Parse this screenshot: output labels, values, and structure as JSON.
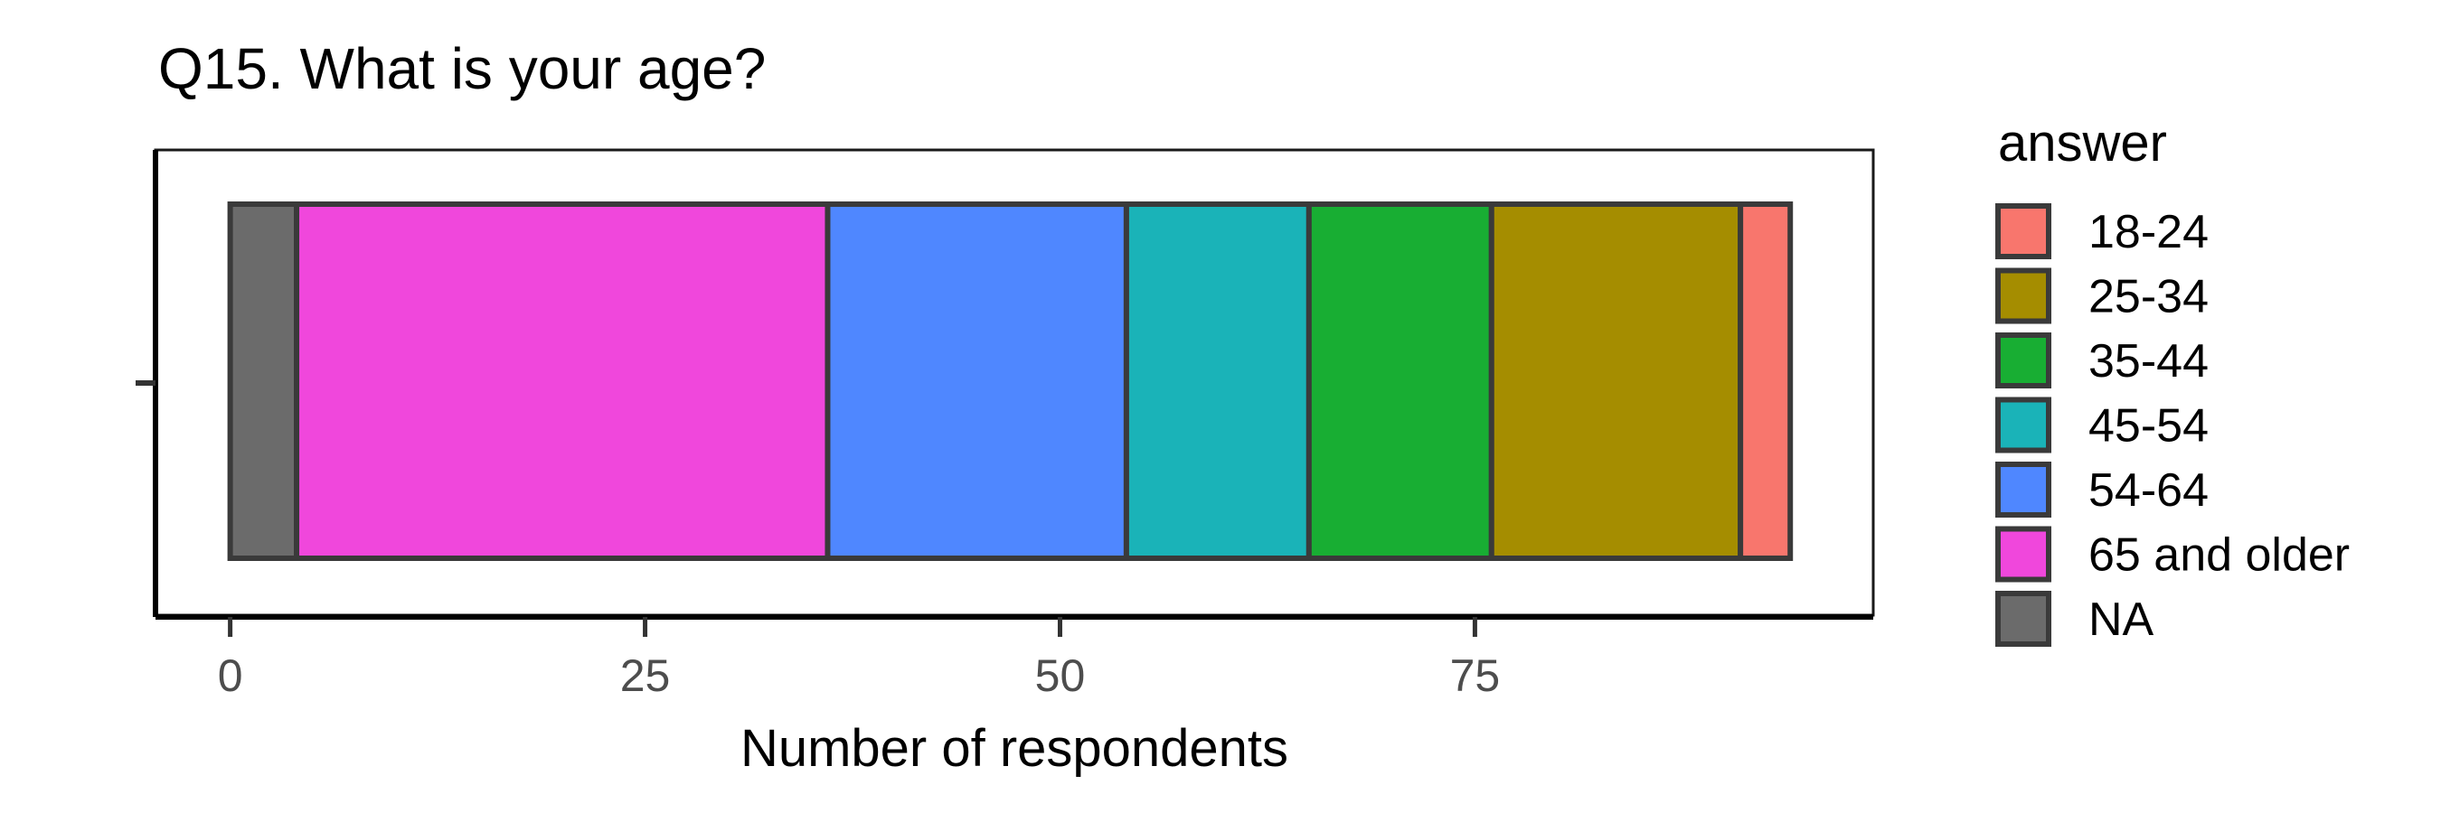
{
  "chart_data": {
    "type": "bar",
    "orientation": "horizontal",
    "stacked": true,
    "title": "Q15. What is your age?",
    "xlabel": "Number of respondents",
    "ylabel": "",
    "xlim": [
      -4.5,
      99
    ],
    "xticks": [
      0,
      25,
      50,
      75
    ],
    "xtick_labels": [
      "0",
      "25",
      "50",
      "75"
    ],
    "grid": false,
    "legend": {
      "title": "answer",
      "placement": "right",
      "entries": [
        "18-24",
        "25-34",
        "35-44",
        "45-54",
        "54-64",
        "65 and older",
        "NA"
      ]
    },
    "stack_order": [
      "NA",
      "65 and older",
      "54-64",
      "45-54",
      "35-44",
      "25-34",
      "18-24"
    ],
    "series": [
      {
        "name": "18-24",
        "values": [
          3
        ],
        "color": "#F8766D"
      },
      {
        "name": "25-34",
        "values": [
          15
        ],
        "color": "#A58D00"
      },
      {
        "name": "35-44",
        "values": [
          11
        ],
        "color": "#18AE33"
      },
      {
        "name": "45-54",
        "values": [
          11
        ],
        "color": "#1AB3B8"
      },
      {
        "name": "54-64",
        "values": [
          18
        ],
        "color": "#4F87FF"
      },
      {
        "name": "65 and older",
        "values": [
          32
        ],
        "color": "#F047DC"
      },
      {
        "name": "NA",
        "values": [
          4
        ],
        "color": "#6B6B6B"
      }
    ]
  }
}
